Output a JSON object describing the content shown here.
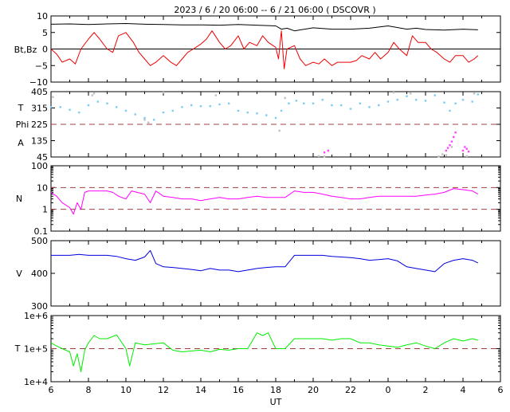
{
  "title": "2023 /  6 / 20   06:00 --  6 / 21   06:00 ( DSCOVR )",
  "colors": {
    "bt": "#000000",
    "bz": "#ee0000",
    "phi": "#7ecbf2",
    "phi_outlier": "#c0c0c0",
    "phi_alt": "#ff44ff",
    "density": "#ff00ff",
    "speed": "#0000dd",
    "temperature": "#00ee00",
    "reference_line": "#a04040",
    "axis": "#000000"
  },
  "chart_data": [
    {
      "type": "line",
      "panel": "magnetic-field",
      "ylabel": "Bt,Bz",
      "ylim": [
        -10,
        10
      ],
      "yticks": [
        "10",
        "5",
        "0",
        "−5",
        "−10"
      ],
      "reference_lines": [
        0
      ],
      "series": [
        {
          "key": "bt",
          "x": [
            6,
            7,
            8,
            8.5,
            9,
            10,
            11,
            12,
            13,
            14,
            15,
            16,
            17,
            18,
            18.3,
            18.6,
            19,
            20,
            21,
            22,
            23,
            24,
            25,
            25.5,
            26,
            27,
            28,
            28.8
          ],
          "values": [
            7.5,
            7.6,
            7.4,
            7.5,
            7.6,
            7.7,
            7.5,
            7.4,
            7.3,
            7.3,
            7.2,
            7.4,
            7.2,
            7.0,
            6.0,
            6.3,
            5.5,
            6.4,
            6.0,
            6.0,
            6.3,
            7.0,
            6.0,
            6.3,
            5.9,
            5.7,
            6.0,
            5.8
          ]
        },
        {
          "key": "bz",
          "x": [
            6,
            6.3,
            6.6,
            7.0,
            7.3,
            7.6,
            8.0,
            8.3,
            8.6,
            9.0,
            9.3,
            9.6,
            10.0,
            10.4,
            10.7,
            11.0,
            11.3,
            11.6,
            12.0,
            12.4,
            12.7,
            13.0,
            13.3,
            13.6,
            14.0,
            14.3,
            14.6,
            15.0,
            15.3,
            15.6,
            16.0,
            16.3,
            16.6,
            17.0,
            17.3,
            17.6,
            18.0,
            18.15,
            18.3,
            18.45,
            18.6,
            19.0,
            19.3,
            19.6,
            20.0,
            20.3,
            20.6,
            21.0,
            21.3,
            21.6,
            22.0,
            22.3,
            22.6,
            23.0,
            23.3,
            23.6,
            24.0,
            24.3,
            24.6,
            25.0,
            25.3,
            25.6,
            26.0,
            26.3,
            26.6,
            27.0,
            27.3,
            27.6,
            28.0,
            28.3,
            28.6,
            28.8
          ],
          "values": [
            0,
            -1.5,
            -4,
            -3,
            -4.5,
            0,
            3,
            5,
            3,
            0,
            -1,
            4,
            5,
            2,
            -1,
            -3,
            -5,
            -4,
            -2,
            -4,
            -5,
            -3,
            -1,
            0,
            1.5,
            3,
            5.5,
            2,
            0,
            1,
            4,
            0,
            2,
            1,
            4,
            2,
            0.5,
            -3,
            5.5,
            -6,
            0,
            1,
            -3,
            -5,
            -4,
            -4.5,
            -3,
            -5,
            -4,
            -4,
            -4,
            -3.5,
            -2,
            -3,
            -1,
            -3,
            -1,
            2,
            0,
            -2,
            4,
            2,
            2,
            0,
            -1,
            -3,
            -4,
            -2,
            -2,
            -4,
            -3,
            -2
          ]
        }
      ]
    },
    {
      "type": "scatter",
      "panel": "angle",
      "ylabel_top": "T",
      "ylabel_mid": "Phi",
      "ylabel_bottom": "A",
      "ylim": [
        45,
        405
      ],
      "yticks": [
        "405",
        "315",
        "225",
        "135",
        "45"
      ],
      "reference_lines": [
        225
      ],
      "series": [
        {
          "key": "phi",
          "x": [
            6,
            6.5,
            7,
            7.5,
            8,
            8.5,
            9,
            9.5,
            10,
            10.5,
            11,
            11.5,
            12,
            12.5,
            13,
            13.5,
            14,
            14.5,
            15,
            15.5,
            16,
            16.5,
            17,
            17.5,
            18,
            18.3,
            18.7,
            19.1,
            19.5,
            20,
            20.5,
            21,
            21.5,
            22,
            22.5,
            23,
            23.5,
            24,
            24.5,
            25,
            25.5,
            26,
            26.5,
            27,
            27.3,
            27.6,
            28,
            28.5,
            28.8
          ],
          "values": [
            320,
            320,
            305,
            290,
            330,
            350,
            340,
            320,
            300,
            280,
            260,
            250,
            290,
            300,
            320,
            330,
            325,
            325,
            335,
            340,
            300,
            290,
            285,
            275,
            260,
            300,
            340,
            355,
            340,
            340,
            360,
            330,
            330,
            310,
            340,
            320,
            330,
            350,
            360,
            380,
            360,
            355,
            385,
            345,
            300,
            340,
            360,
            350,
            390
          ]
        },
        {
          "key": "phi_outlier",
          "x": [
            6.1,
            8.2,
            8.3,
            11.0,
            11.2,
            12.0,
            14.8,
            18.2,
            18.5,
            20.3,
            20.6,
            24.3,
            25.2,
            26.7,
            26.9,
            27.1,
            27.4,
            28.2,
            28.6
          ],
          "values": [
            375,
            385,
            395,
            250,
            235,
            400,
            385,
            190,
            370,
            50,
            48,
            400,
            395,
            48,
            60,
            55,
            100,
            50,
            395
          ]
        },
        {
          "key": "phi_alt",
          "x": [
            20.6,
            20.8,
            27.1,
            27.2,
            27.3,
            27.4,
            27.5,
            27.6,
            28.0,
            28.1,
            28.2,
            28.3
          ],
          "values": [
            70,
            80,
            80,
            95,
            110,
            130,
            155,
            180,
            80,
            100,
            90,
            75
          ]
        }
      ]
    },
    {
      "type": "line",
      "panel": "density",
      "ylabel": "N",
      "scale": "log",
      "ylim": [
        0.1,
        100
      ],
      "yticks": [
        "100",
        "10",
        "1",
        "0.1"
      ],
      "reference_lines": [
        1,
        10
      ],
      "series": [
        {
          "key": "density",
          "x": [
            6,
            6.3,
            6.6,
            7.0,
            7.2,
            7.4,
            7.6,
            7.8,
            8.0,
            8.3,
            8.6,
            9.0,
            9.3,
            9.6,
            10.0,
            10.3,
            10.6,
            11.0,
            11.3,
            11.6,
            12.0,
            12.5,
            13.0,
            13.5,
            14.0,
            14.5,
            15.0,
            15.5,
            16.0,
            16.5,
            17.0,
            17.5,
            18.0,
            18.5,
            19.0,
            19.5,
            20.0,
            20.5,
            21.0,
            21.5,
            22.0,
            22.5,
            23.0,
            23.5,
            24.0,
            24.5,
            25.0,
            25.5,
            26.0,
            26.5,
            27.0,
            27.5,
            28.0,
            28.5,
            28.8
          ],
          "values": [
            6,
            4,
            2,
            1.2,
            0.6,
            2,
            1,
            6,
            7,
            7,
            7,
            7,
            6,
            4,
            3,
            7,
            6,
            5,
            2,
            7,
            4,
            3.5,
            3,
            3,
            2.5,
            3,
            3.5,
            3,
            3,
            3.5,
            4,
            3.5,
            3.5,
            3.5,
            7,
            6,
            6,
            5,
            4,
            3.5,
            3,
            3,
            3.5,
            4,
            4,
            4,
            4,
            4,
            4.5,
            5,
            6,
            9,
            8,
            7,
            5
          ]
        }
      ]
    },
    {
      "type": "line",
      "panel": "speed",
      "ylabel": "V",
      "ylim": [
        300,
        500
      ],
      "yticks": [
        "500",
        "400",
        "300"
      ],
      "series": [
        {
          "key": "speed",
          "x": [
            6,
            6.5,
            7,
            7.5,
            8,
            8.5,
            9,
            9.5,
            10,
            10.5,
            11,
            11.3,
            11.6,
            12,
            12.5,
            13,
            13.5,
            14,
            14.5,
            15,
            15.5,
            16,
            16.5,
            17,
            17.5,
            18,
            18.5,
            19,
            19.5,
            20,
            20.5,
            21,
            21.5,
            22,
            22.5,
            23,
            23.5,
            24,
            24.5,
            25,
            25.5,
            26,
            26.5,
            27,
            27.5,
            28,
            28.5,
            28.8
          ],
          "values": [
            455,
            455,
            455,
            458,
            455,
            455,
            455,
            452,
            445,
            440,
            450,
            470,
            430,
            420,
            418,
            415,
            412,
            408,
            415,
            410,
            410,
            405,
            410,
            415,
            418,
            420,
            420,
            455,
            455,
            455,
            455,
            452,
            450,
            448,
            445,
            440,
            442,
            445,
            438,
            420,
            415,
            410,
            405,
            430,
            440,
            445,
            440,
            432
          ]
        }
      ]
    },
    {
      "type": "line",
      "panel": "temperature",
      "ylabel": "T",
      "scale": "log",
      "ylim": [
        10000,
        1000000
      ],
      "yticks": [
        "1e+6",
        "1e+5",
        "1e+4"
      ],
      "reference_lines": [
        100000
      ],
      "xlabel": "UT",
      "xlim": [
        6,
        30
      ],
      "xticks": [
        "6",
        "8",
        "10",
        "12",
        "14",
        "16",
        "18",
        "20",
        "22",
        "0",
        "2",
        "4",
        "6"
      ],
      "series": [
        {
          "key": "temperature",
          "x": [
            6,
            6.3,
            6.6,
            7.0,
            7.2,
            7.4,
            7.6,
            7.8,
            8.0,
            8.3,
            8.6,
            9.0,
            9.5,
            10.0,
            10.2,
            10.5,
            11.0,
            11.5,
            12.0,
            12.5,
            13.0,
            13.5,
            14.0,
            14.5,
            15.0,
            15.5,
            16.0,
            16.5,
            17.0,
            17.3,
            17.6,
            18.0,
            18.5,
            19.0,
            19.5,
            20.0,
            20.5,
            21.0,
            21.5,
            22.0,
            22.5,
            23.0,
            23.5,
            24.0,
            24.5,
            25.0,
            25.5,
            26.0,
            26.5,
            27.0,
            27.5,
            28.0,
            28.5,
            28.8
          ],
          "values": [
            150000,
            120000,
            100000,
            80000,
            30000,
            70000,
            20000,
            90000,
            150000,
            250000,
            200000,
            200000,
            260000,
            100000,
            30000,
            150000,
            130000,
            140000,
            150000,
            90000,
            80000,
            85000,
            90000,
            80000,
            95000,
            90000,
            100000,
            100000,
            300000,
            250000,
            300000,
            100000,
            100000,
            200000,
            200000,
            200000,
            200000,
            180000,
            200000,
            200000,
            150000,
            150000,
            130000,
            120000,
            110000,
            130000,
            150000,
            120000,
            100000,
            150000,
            200000,
            170000,
            200000,
            180000
          ]
        }
      ]
    }
  ]
}
